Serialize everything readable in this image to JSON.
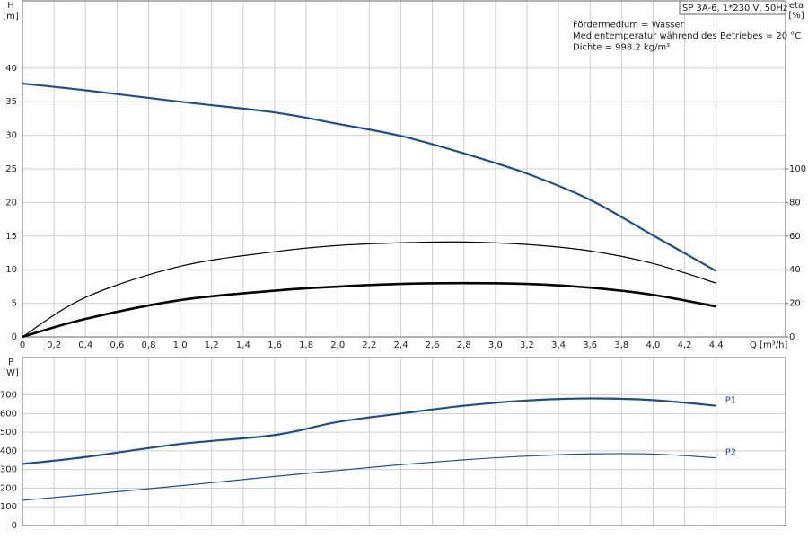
{
  "chart_data": [
    {
      "type": "line",
      "ylabel": "H",
      "yunit": "[m]",
      "y2label": "eta",
      "y2unit": "[%]",
      "xlabel": "Q [m³/h]",
      "info": [
        "SP 3A-6, 1*230 V, 50Hz",
        "Fördermedium = Wasser",
        "Medientemperatur während des Betriebes = 20 °C",
        "Dichte = 998.2 kg/m³"
      ],
      "xlim": [
        0,
        4.84
      ],
      "xticks": [
        0,
        {
          "value": 0.2,
          "label": "0,2"
        },
        {
          "value": 0.4,
          "label": "0,4"
        },
        {
          "value": 0.6,
          "label": "0,6"
        },
        {
          "value": 0.8,
          "label": "0,8"
        },
        {
          "value": 1.0,
          "label": "1,0"
        },
        {
          "value": 1.2,
          "label": "1,2"
        },
        {
          "value": 1.4,
          "label": "1,4"
        },
        {
          "value": 1.6,
          "label": "1,6"
        },
        {
          "value": 1.8,
          "label": "1,8"
        },
        {
          "value": 2.0,
          "label": "2,0"
        },
        {
          "value": 2.2,
          "label": "2,2"
        },
        {
          "value": 2.4,
          "label": "2,4"
        },
        {
          "value": 2.6,
          "label": "2,6"
        },
        {
          "value": 2.8,
          "label": "2,8"
        },
        {
          "value": 3.0,
          "label": "3,0"
        },
        {
          "value": 3.2,
          "label": "3,2"
        },
        {
          "value": 3.4,
          "label": "3,4"
        },
        {
          "value": 3.6,
          "label": "3,6"
        },
        {
          "value": 3.8,
          "label": "3,8"
        },
        {
          "value": 4.0,
          "label": "4,0"
        },
        {
          "value": 4.2,
          "label": "4,2"
        },
        {
          "value": 4.4,
          "label": "4,4"
        }
      ],
      "ylim": [
        0,
        50
      ],
      "yticks": [
        0,
        5,
        10,
        15,
        20,
        25,
        30,
        35,
        40
      ],
      "y2lim": [
        0,
        200
      ],
      "y2ticks": [
        0,
        20,
        40,
        60,
        80,
        100
      ],
      "grid": true,
      "x": [
        0,
        0.4,
        1.0,
        1.6,
        2.0,
        2.4,
        2.8,
        3.2,
        3.6,
        4.0,
        4.4
      ],
      "series": [
        {
          "color": "#1f4e8c",
          "values": [
            37.7,
            36.7,
            35.0,
            33.4,
            31.7,
            29.9,
            27.3,
            24.3,
            20.4,
            15.1,
            9.8
          ]
        },
        {
          "color": "#000000",
          "axis": "y2",
          "values": [
            0,
            23.5,
            42,
            50.7,
            54.4,
            56,
            56.5,
            55,
            51.2,
            43.7,
            32
          ]
        },
        {
          "color": "#000000",
          "axis": "y2",
          "values": [
            0,
            10.7,
            21.9,
            27.5,
            29.9,
            31.5,
            32,
            31.5,
            29.3,
            25,
            18.1
          ]
        }
      ]
    },
    {
      "type": "line",
      "ylabel": "P",
      "yunit": "[W]",
      "xlim": [
        0,
        4.84
      ],
      "ylim": [
        0,
        900
      ],
      "yticks": [
        0,
        100,
        200,
        300,
        400,
        500,
        600,
        700
      ],
      "grid": true,
      "x": [
        0,
        0.4,
        1.0,
        1.6,
        2.0,
        2.4,
        2.8,
        3.2,
        3.6,
        4.0,
        4.4
      ],
      "series": [
        {
          "name": "P1",
          "color": "#1f4e8c",
          "values": [
            330,
            367,
            437,
            485,
            555,
            600,
            642,
            670,
            681,
            672,
            642
          ]
        },
        {
          "name": "P2",
          "color": "#1f4e8c",
          "values": [
            135,
            165,
            213,
            263,
            295,
            326,
            352,
            372,
            384,
            383,
            363
          ]
        }
      ]
    }
  ]
}
